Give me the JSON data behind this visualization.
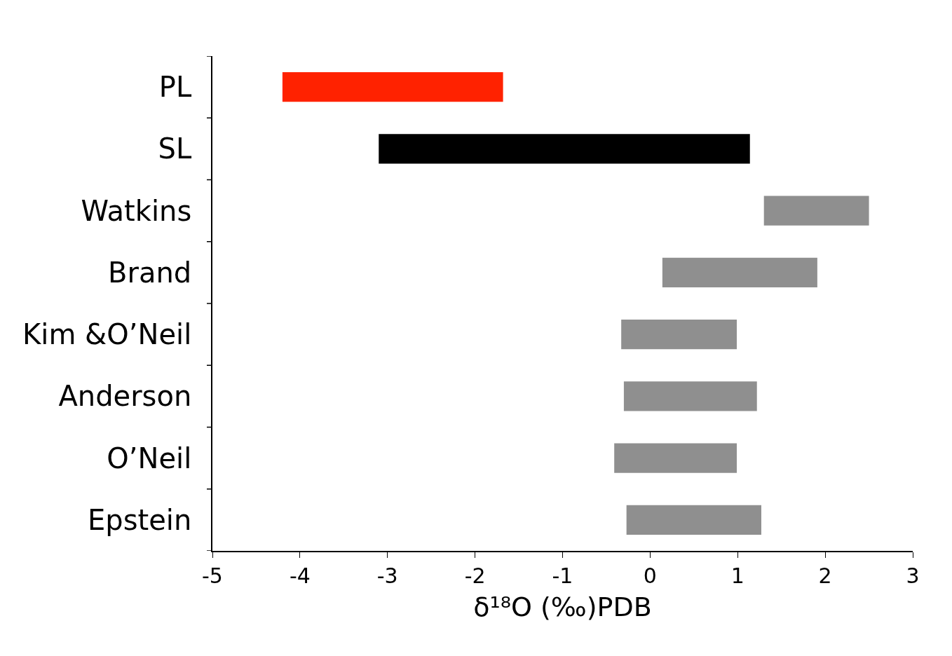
{
  "chart_data": {
    "type": "bar",
    "orientation": "horizontal",
    "xlabel": "δ¹⁸O (‰)PDB",
    "categories": [
      "PL",
      "SL",
      "Watkins",
      "Brand",
      "Kim &O’Neil",
      "Anderson",
      "O’Neil",
      "Epstein"
    ],
    "base": [
      -4.2,
      -3.1,
      1.3,
      0.14,
      -0.33,
      -0.3,
      -0.41,
      -0.27
    ],
    "values": [
      2.52,
      4.24,
      1.2,
      1.77,
      1.32,
      1.52,
      1.4,
      1.54
    ],
    "colors": [
      "#ff2200",
      "#000000",
      "#8f8f8f",
      "#8f8f8f",
      "#8f8f8f",
      "#8f8f8f",
      "#8f8f8f",
      "#8f8f8f"
    ],
    "xlim": [
      -5,
      3
    ],
    "xticks": [
      -5,
      -4,
      -3,
      -2,
      -1,
      0,
      1,
      2,
      3
    ]
  }
}
